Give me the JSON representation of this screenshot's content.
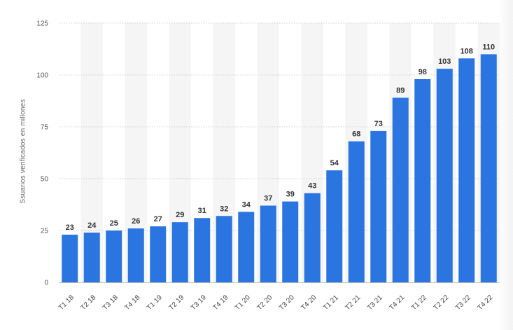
{
  "chart_data": {
    "type": "bar",
    "categories": [
      "T1 18",
      "T2 18",
      "T3 18",
      "T4 18",
      "T1 19",
      "T2 19",
      "T3 19",
      "T4 19",
      "T1 20",
      "T2 20",
      "T3 20",
      "T4 20",
      "T1 21",
      "T2 21",
      "T3 21",
      "T4 21",
      "T1 22",
      "T2 22",
      "T3 22",
      "T4 22"
    ],
    "values": [
      23,
      24,
      25,
      26,
      27,
      29,
      31,
      32,
      34,
      37,
      39,
      43,
      54,
      68,
      73,
      89,
      98,
      103,
      108,
      110
    ],
    "ylabel": "Ssuarios verificados en millones",
    "ylim": [
      0,
      125
    ],
    "yticks": [
      0,
      25,
      50,
      75,
      100,
      125
    ],
    "grid": true,
    "colors": {
      "bar": "#2a75e0",
      "band": "#f5f5f5",
      "grid": "#cfcfcf"
    }
  }
}
